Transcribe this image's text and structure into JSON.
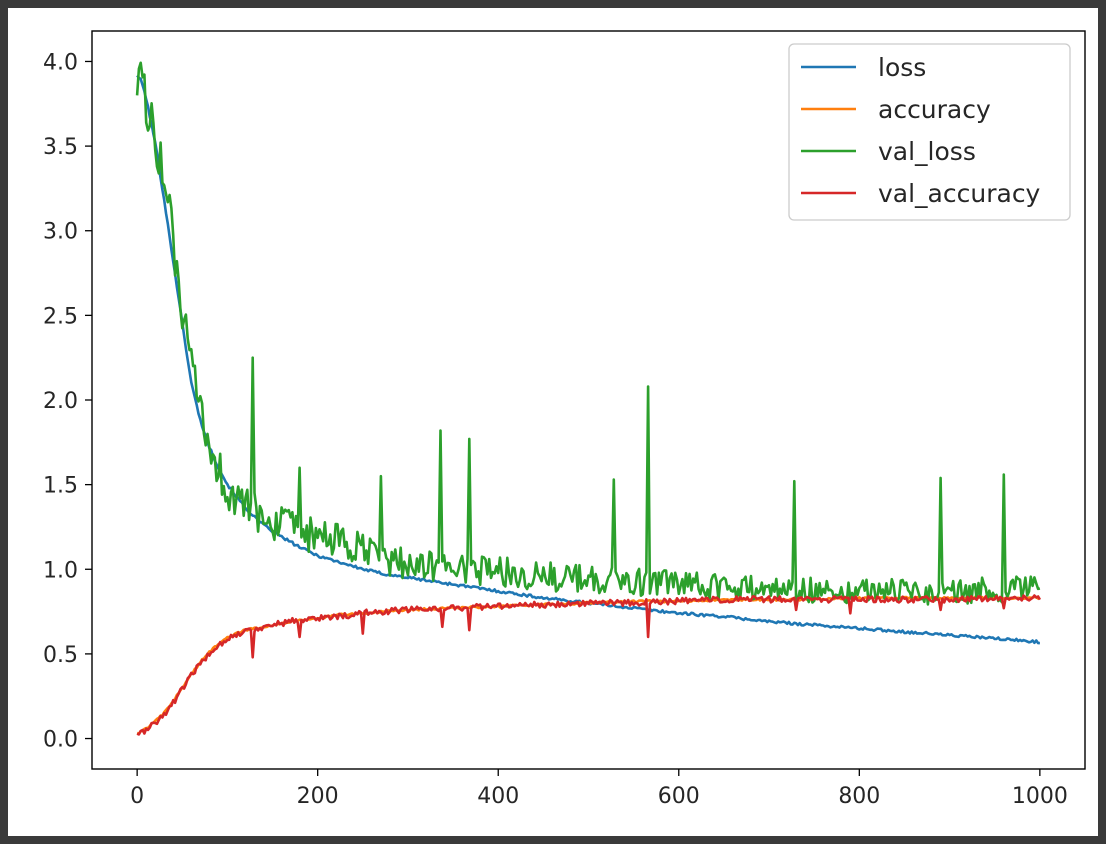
{
  "chart_data": {
    "type": "line",
    "title": "",
    "xlabel": "",
    "ylabel": "",
    "xlim": [
      -50,
      1050
    ],
    "ylim": [
      -0.18,
      4.18
    ],
    "x_ticks": [
      0,
      200,
      400,
      600,
      800,
      1000
    ],
    "x_tick_labels": [
      "0",
      "200",
      "400",
      "600",
      "800",
      "1000"
    ],
    "y_ticks": [
      0.0,
      0.5,
      1.0,
      1.5,
      2.0,
      2.5,
      3.0,
      3.5,
      4.0
    ],
    "y_tick_labels": [
      "0.0",
      "0.5",
      "1.0",
      "1.5",
      "2.0",
      "2.5",
      "3.0",
      "3.5",
      "4.0"
    ],
    "grid": false,
    "legend_position": "top-right",
    "x": [
      0,
      5,
      10,
      20,
      30,
      40,
      50,
      60,
      70,
      80,
      90,
      100,
      120,
      140,
      160,
      180,
      200,
      225,
      250,
      275,
      300,
      350,
      400,
      450,
      500,
      550,
      600,
      650,
      700,
      750,
      800,
      850,
      900,
      950,
      1000
    ],
    "series": [
      {
        "name": "loss",
        "color": "#1f77b4",
        "values": [
          3.92,
          3.88,
          3.78,
          3.52,
          3.18,
          2.82,
          2.45,
          2.1,
          1.88,
          1.72,
          1.6,
          1.5,
          1.36,
          1.26,
          1.19,
          1.13,
          1.08,
          1.04,
          1.0,
          0.97,
          0.95,
          0.91,
          0.87,
          0.83,
          0.8,
          0.77,
          0.74,
          0.72,
          0.69,
          0.67,
          0.65,
          0.63,
          0.61,
          0.59,
          0.57
        ]
      },
      {
        "name": "accuracy",
        "color": "#ff7f0e",
        "values": [
          0.03,
          0.04,
          0.06,
          0.1,
          0.15,
          0.22,
          0.3,
          0.38,
          0.45,
          0.51,
          0.56,
          0.6,
          0.64,
          0.66,
          0.68,
          0.7,
          0.71,
          0.73,
          0.74,
          0.75,
          0.76,
          0.77,
          0.78,
          0.79,
          0.8,
          0.81,
          0.81,
          0.82,
          0.82,
          0.82,
          0.83,
          0.83,
          0.83,
          0.83,
          0.83
        ]
      },
      {
        "name": "val_loss",
        "color": "#2ca02c",
        "values": [
          3.92,
          3.85,
          3.72,
          3.55,
          3.3,
          2.9,
          2.5,
          2.15,
          1.9,
          1.7,
          1.58,
          1.45,
          1.35,
          1.3,
          1.25,
          1.2,
          1.18,
          1.15,
          1.1,
          1.05,
          1.02,
          1.0,
          0.98,
          0.95,
          0.93,
          0.92,
          0.9,
          0.88,
          0.88,
          0.87,
          0.87,
          0.86,
          0.86,
          0.87,
          0.88
        ],
        "spikes": [
          [
            5,
            4.0
          ],
          [
            60,
            2.3
          ],
          [
            95,
            1.85
          ],
          [
            128,
            2.25
          ],
          [
            180,
            1.6
          ],
          [
            237,
            1.52
          ],
          [
            270,
            1.55
          ],
          [
            336,
            1.82
          ],
          [
            368,
            1.77
          ],
          [
            528,
            1.53
          ],
          [
            566,
            2.08
          ],
          [
            728,
            1.52
          ],
          [
            890,
            1.54
          ],
          [
            960,
            1.56
          ],
          [
            995,
            1.05
          ]
        ]
      },
      {
        "name": "val_accuracy",
        "color": "#d62728",
        "values": [
          0.03,
          0.03,
          0.05,
          0.09,
          0.14,
          0.21,
          0.29,
          0.37,
          0.44,
          0.5,
          0.55,
          0.59,
          0.63,
          0.66,
          0.68,
          0.7,
          0.71,
          0.72,
          0.74,
          0.75,
          0.76,
          0.77,
          0.78,
          0.79,
          0.8,
          0.8,
          0.81,
          0.82,
          0.82,
          0.82,
          0.82,
          0.82,
          0.82,
          0.83,
          0.83
        ],
        "dips": [
          [
            128,
            0.48
          ],
          [
            180,
            0.6
          ],
          [
            250,
            0.62
          ],
          [
            338,
            0.66
          ],
          [
            368,
            0.64
          ],
          [
            566,
            0.6
          ],
          [
            730,
            0.76
          ],
          [
            790,
            0.74
          ],
          [
            890,
            0.76
          ],
          [
            960,
            0.77
          ]
        ]
      }
    ]
  }
}
